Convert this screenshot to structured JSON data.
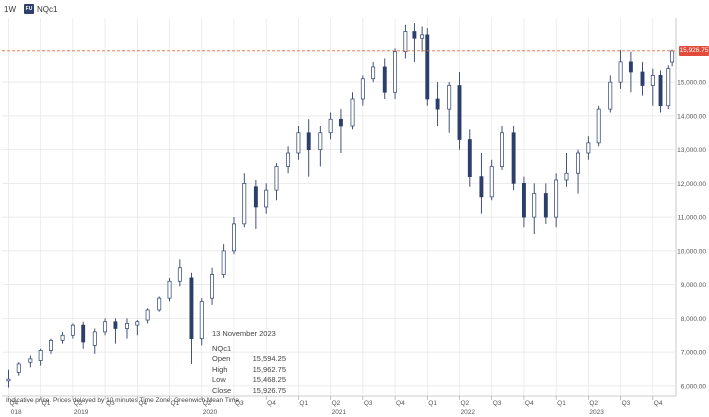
{
  "toolbar": {
    "interval": "1W",
    "ric_badge": "FU",
    "ric": "NQc1"
  },
  "info_panel": {
    "date": "13 November 2023",
    "instrument": "NQc1",
    "rows": [
      {
        "label": "Open",
        "value": "15,594.25"
      },
      {
        "label": "High",
        "value": "15,962.75"
      },
      {
        "label": "Low",
        "value": "15,468.25"
      },
      {
        "label": "Close",
        "value": "15,926.75"
      }
    ]
  },
  "disclaimer": "Indicative price. Prices delayed by 10 minutes    Time Zone: Greenwich Mean Time",
  "last_price_label": "15,926.75",
  "colors": {
    "candle": "#2c3e6b",
    "last_price_line": "#e8703a",
    "last_price_tag": "#e04b3c",
    "grid": "#e6e6e6"
  },
  "chart_data": {
    "type": "candlestick",
    "series_name": "NQc1",
    "interval": "1W",
    "ylim": [
      5700,
      16900
    ],
    "xlim": [
      2018.7,
      2023.93
    ],
    "ytick_labels": [
      "6,000.00",
      "7,000.00",
      "8,000.00",
      "9,000.00",
      "10,000.00",
      "11,000.00",
      "12,000.00",
      "13,000.00",
      "14,000.00",
      "15,000.00"
    ],
    "yticks": [
      6000,
      7000,
      8000,
      9000,
      10000,
      11000,
      12000,
      13000,
      14000,
      15000
    ],
    "quarter_ticks": [
      {
        "t": 2018.75,
        "label": "Q4"
      },
      {
        "t": 2019.0,
        "label": "Q1"
      },
      {
        "t": 2019.25,
        "label": "Q2"
      },
      {
        "t": 2019.5,
        "label": "Q3"
      },
      {
        "t": 2019.75,
        "label": "Q4"
      },
      {
        "t": 2020.0,
        "label": "Q1"
      },
      {
        "t": 2020.25,
        "label": "Q2"
      },
      {
        "t": 2020.5,
        "label": "Q3"
      },
      {
        "t": 2020.75,
        "label": "Q4"
      },
      {
        "t": 2021.0,
        "label": "Q1"
      },
      {
        "t": 2021.25,
        "label": "Q2"
      },
      {
        "t": 2021.5,
        "label": "Q3"
      },
      {
        "t": 2021.75,
        "label": "Q4"
      },
      {
        "t": 2022.0,
        "label": "Q1"
      },
      {
        "t": 2022.25,
        "label": "Q2"
      },
      {
        "t": 2022.5,
        "label": "Q3"
      },
      {
        "t": 2022.75,
        "label": "Q4"
      },
      {
        "t": 2023.0,
        "label": "Q1"
      },
      {
        "t": 2023.25,
        "label": "Q2"
      },
      {
        "t": 2023.5,
        "label": "Q3"
      },
      {
        "t": 2023.75,
        "label": "Q4"
      }
    ],
    "year_ticks": [
      {
        "t": 2018.76,
        "label": "018"
      },
      {
        "t": 2019.25,
        "label": "2019"
      },
      {
        "t": 2020.25,
        "label": "2020"
      },
      {
        "t": 2021.25,
        "label": "2021"
      },
      {
        "t": 2022.25,
        "label": "2022"
      },
      {
        "t": 2023.25,
        "label": "2023"
      }
    ],
    "last_price": 15926.75,
    "candles": [
      {
        "t": 2018.75,
        "o": 6150,
        "h": 6480,
        "l": 5950,
        "c": 6200
      },
      {
        "t": 2018.83,
        "o": 6400,
        "h": 6700,
        "l": 6300,
        "c": 6650
      },
      {
        "t": 2018.92,
        "o": 6700,
        "h": 6900,
        "l": 6550,
        "c": 6800
      },
      {
        "t": 2019.0,
        "o": 6750,
        "h": 7100,
        "l": 6600,
        "c": 7050
      },
      {
        "t": 2019.08,
        "o": 7050,
        "h": 7400,
        "l": 6950,
        "c": 7350
      },
      {
        "t": 2019.17,
        "o": 7350,
        "h": 7600,
        "l": 7250,
        "c": 7500
      },
      {
        "t": 2019.25,
        "o": 7500,
        "h": 7850,
        "l": 7400,
        "c": 7800
      },
      {
        "t": 2019.33,
        "o": 7800,
        "h": 7900,
        "l": 7100,
        "c": 7300
      },
      {
        "t": 2019.42,
        "o": 7200,
        "h": 7700,
        "l": 6950,
        "c": 7600
      },
      {
        "t": 2019.5,
        "o": 7600,
        "h": 8000,
        "l": 7500,
        "c": 7900
      },
      {
        "t": 2019.58,
        "o": 7900,
        "h": 8000,
        "l": 7250,
        "c": 7700
      },
      {
        "t": 2019.67,
        "o": 7700,
        "h": 8000,
        "l": 7400,
        "c": 7850
      },
      {
        "t": 2019.75,
        "o": 7800,
        "h": 7950,
        "l": 7500,
        "c": 7900
      },
      {
        "t": 2019.83,
        "o": 7950,
        "h": 8300,
        "l": 7850,
        "c": 8250
      },
      {
        "t": 2019.92,
        "o": 8250,
        "h": 8650,
        "l": 8200,
        "c": 8600
      },
      {
        "t": 2020.0,
        "o": 8600,
        "h": 9200,
        "l": 8500,
        "c": 9100
      },
      {
        "t": 2020.08,
        "o": 9100,
        "h": 9750,
        "l": 8950,
        "c": 9500
      },
      {
        "t": 2020.17,
        "o": 9200,
        "h": 9350,
        "l": 6650,
        "c": 7400
      },
      {
        "t": 2020.25,
        "o": 7400,
        "h": 8600,
        "l": 7200,
        "c": 8500
      },
      {
        "t": 2020.33,
        "o": 8600,
        "h": 9500,
        "l": 8400,
        "c": 9300
      },
      {
        "t": 2020.42,
        "o": 9300,
        "h": 10200,
        "l": 9200,
        "c": 10000
      },
      {
        "t": 2020.5,
        "o": 10000,
        "h": 11000,
        "l": 9900,
        "c": 10800
      },
      {
        "t": 2020.58,
        "o": 10800,
        "h": 12300,
        "l": 10700,
        "c": 12000
      },
      {
        "t": 2020.67,
        "o": 11900,
        "h": 12100,
        "l": 10650,
        "c": 11300
      },
      {
        "t": 2020.75,
        "o": 11300,
        "h": 12000,
        "l": 11100,
        "c": 11800
      },
      {
        "t": 2020.83,
        "o": 11800,
        "h": 12600,
        "l": 11500,
        "c": 12500
      },
      {
        "t": 2020.92,
        "o": 12500,
        "h": 13100,
        "l": 12300,
        "c": 12900
      },
      {
        "t": 2021.0,
        "o": 12900,
        "h": 13700,
        "l": 12700,
        "c": 13500
      },
      {
        "t": 2021.08,
        "o": 13500,
        "h": 13900,
        "l": 12200,
        "c": 13000
      },
      {
        "t": 2021.17,
        "o": 13000,
        "h": 13700,
        "l": 12500,
        "c": 13500
      },
      {
        "t": 2021.25,
        "o": 13500,
        "h": 14100,
        "l": 13300,
        "c": 13900
      },
      {
        "t": 2021.33,
        "o": 13900,
        "h": 14200,
        "l": 12900,
        "c": 13700
      },
      {
        "t": 2021.42,
        "o": 13700,
        "h": 14700,
        "l": 13600,
        "c": 14500
      },
      {
        "t": 2021.5,
        "o": 14500,
        "h": 15200,
        "l": 14300,
        "c": 15100
      },
      {
        "t": 2021.58,
        "o": 15100,
        "h": 15600,
        "l": 15000,
        "c": 15450
      },
      {
        "t": 2021.67,
        "o": 15450,
        "h": 15700,
        "l": 14500,
        "c": 14700
      },
      {
        "t": 2021.75,
        "o": 14700,
        "h": 16000,
        "l": 14500,
        "c": 15900
      },
      {
        "t": 2021.83,
        "o": 15900,
        "h": 16700,
        "l": 15700,
        "c": 16500
      },
      {
        "t": 2021.9,
        "o": 16500,
        "h": 16750,
        "l": 15600,
        "c": 16300
      },
      {
        "t": 2021.96,
        "o": 16300,
        "h": 16650,
        "l": 15900,
        "c": 16400
      },
      {
        "t": 2022.0,
        "o": 16400,
        "h": 16600,
        "l": 14300,
        "c": 14500
      },
      {
        "t": 2022.08,
        "o": 14500,
        "h": 15000,
        "l": 13700,
        "c": 14200
      },
      {
        "t": 2022.17,
        "o": 14200,
        "h": 15000,
        "l": 13500,
        "c": 14900
      },
      {
        "t": 2022.25,
        "o": 14900,
        "h": 15300,
        "l": 13000,
        "c": 13300
      },
      {
        "t": 2022.33,
        "o": 13300,
        "h": 13600,
        "l": 11900,
        "c": 12200
      },
      {
        "t": 2022.42,
        "o": 12200,
        "h": 12900,
        "l": 11100,
        "c": 11600
      },
      {
        "t": 2022.5,
        "o": 11600,
        "h": 12700,
        "l": 11500,
        "c": 12500
      },
      {
        "t": 2022.58,
        "o": 12500,
        "h": 13700,
        "l": 12400,
        "c": 13500
      },
      {
        "t": 2022.67,
        "o": 13500,
        "h": 13700,
        "l": 11800,
        "c": 12000
      },
      {
        "t": 2022.75,
        "o": 12000,
        "h": 12200,
        "l": 10700,
        "c": 11000
      },
      {
        "t": 2022.83,
        "o": 11000,
        "h": 12000,
        "l": 10500,
        "c": 11700
      },
      {
        "t": 2022.92,
        "o": 11700,
        "h": 12000,
        "l": 10800,
        "c": 11000
      },
      {
        "t": 2023.0,
        "o": 11000,
        "h": 12300,
        "l": 10700,
        "c": 12100
      },
      {
        "t": 2023.08,
        "o": 12100,
        "h": 12900,
        "l": 11900,
        "c": 12300
      },
      {
        "t": 2023.17,
        "o": 12300,
        "h": 13000,
        "l": 11700,
        "c": 12900
      },
      {
        "t": 2023.25,
        "o": 12900,
        "h": 13400,
        "l": 12700,
        "c": 13200
      },
      {
        "t": 2023.33,
        "o": 13200,
        "h": 14300,
        "l": 13100,
        "c": 14200
      },
      {
        "t": 2023.42,
        "o": 14200,
        "h": 15200,
        "l": 14100,
        "c": 15000
      },
      {
        "t": 2023.5,
        "o": 15000,
        "h": 15950,
        "l": 14800,
        "c": 15600
      },
      {
        "t": 2023.58,
        "o": 15600,
        "h": 15900,
        "l": 14700,
        "c": 15300
      },
      {
        "t": 2023.67,
        "o": 15300,
        "h": 15600,
        "l": 14600,
        "c": 14900
      },
      {
        "t": 2023.75,
        "o": 14900,
        "h": 15400,
        "l": 14300,
        "c": 15200
      },
      {
        "t": 2023.81,
        "o": 15200,
        "h": 15350,
        "l": 14100,
        "c": 14300
      },
      {
        "t": 2023.87,
        "o": 14300,
        "h": 15500,
        "l": 14200,
        "c": 15400
      },
      {
        "t": 2023.9,
        "o": 15594.25,
        "h": 15962.75,
        "l": 15468.25,
        "c": 15926.75
      }
    ]
  }
}
